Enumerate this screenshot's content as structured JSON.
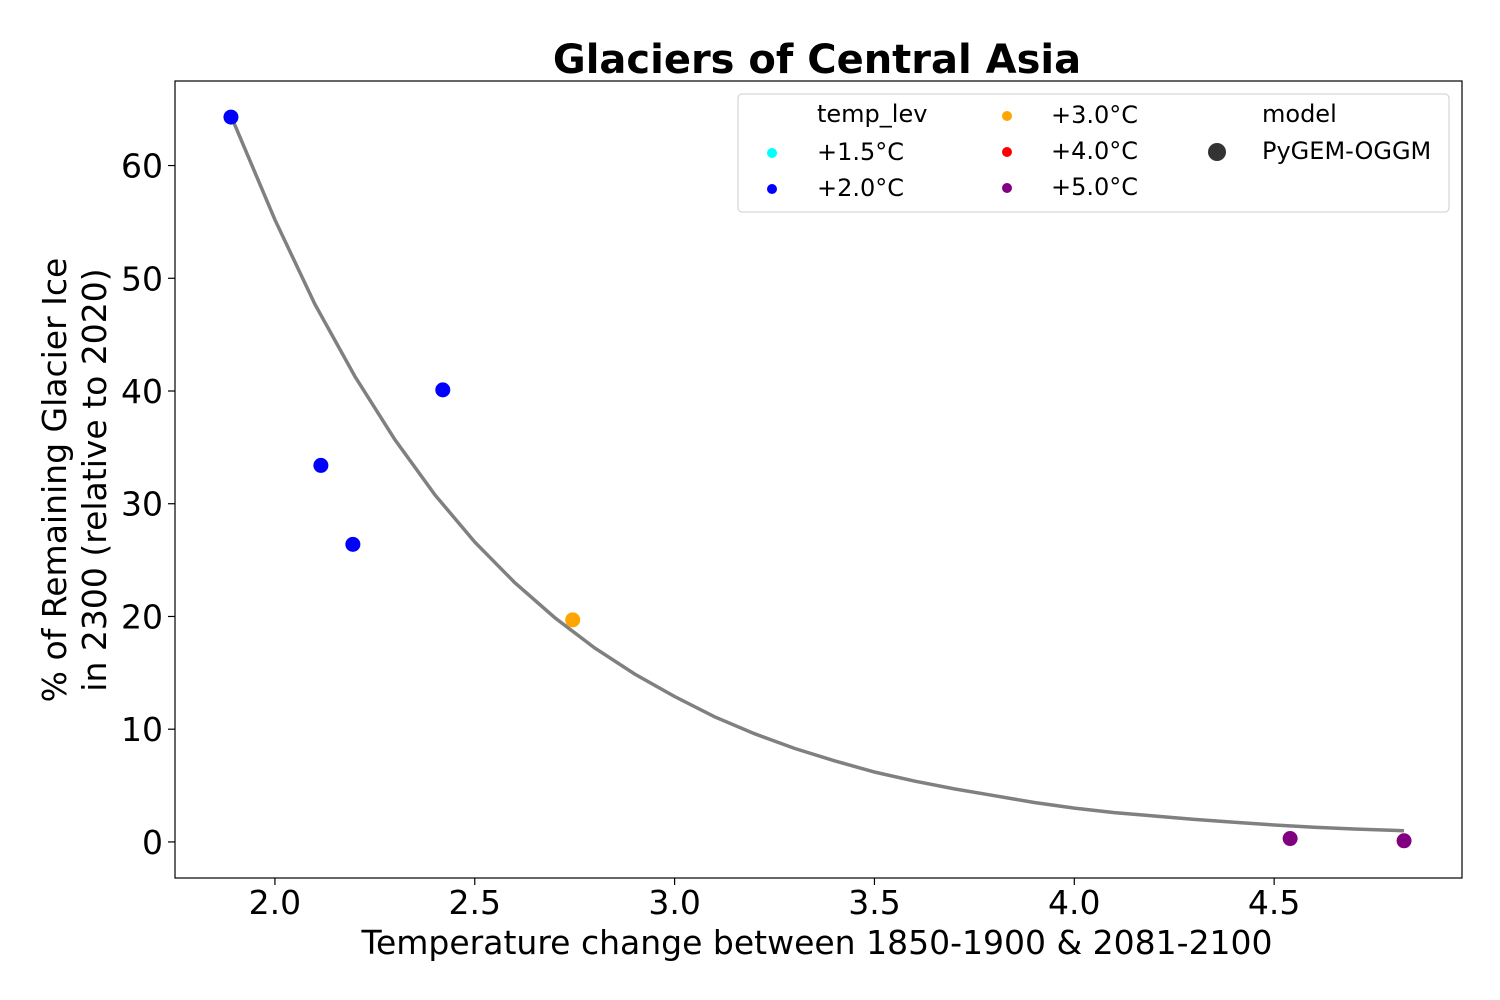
{
  "chart_data": {
    "type": "scatter",
    "title": "Glaciers of Central Asia",
    "xlabel": "Temperature change between 1850-1900 & 2081-2100",
    "ylabel_lines": [
      "% of Remaining Glacier Ice",
      "in 2300 (relative to 2020)"
    ],
    "xlim": [
      1.75,
      4.97
    ],
    "ylim": [
      -3.2,
      67.5
    ],
    "xticks": [
      2.0,
      2.5,
      3.0,
      3.5,
      4.0,
      4.5
    ],
    "xtick_labels": [
      "2.0",
      "2.5",
      "3.0",
      "3.5",
      "4.0",
      "4.5"
    ],
    "yticks": [
      0,
      10,
      20,
      30,
      40,
      50,
      60
    ],
    "ytick_labels": [
      "0",
      "10",
      "20",
      "30",
      "40",
      "50",
      "60"
    ],
    "grid": false,
    "legend": {
      "placement": "top-right",
      "hue_title": "temp_lev",
      "style_title": "model",
      "hue_entries": [
        {
          "label": "+1.5°C",
          "color": "#00ffff"
        },
        {
          "label": "+2.0°C",
          "color": "#0000ff"
        },
        {
          "label": "+3.0°C",
          "color": "#ffa500"
        },
        {
          "label": "+4.0°C",
          "color": "#ff0000"
        },
        {
          "label": "+5.0°C",
          "color": "#800080"
        }
      ],
      "style_entries": [
        {
          "label": "PyGEM-OGGM",
          "color": "#333333"
        }
      ]
    },
    "points": [
      {
        "x": 1.89,
        "y": 64.3,
        "temp_lev": "+2.0°C",
        "color": "#0000ff"
      },
      {
        "x": 2.115,
        "y": 33.4,
        "temp_lev": "+2.0°C",
        "color": "#0000ff"
      },
      {
        "x": 2.195,
        "y": 26.4,
        "temp_lev": "+2.0°C",
        "color": "#0000ff"
      },
      {
        "x": 2.42,
        "y": 40.1,
        "temp_lev": "+2.0°C",
        "color": "#0000ff"
      },
      {
        "x": 2.745,
        "y": 19.7,
        "temp_lev": "+3.0°C",
        "color": "#ffa500"
      },
      {
        "x": 4.54,
        "y": 0.3,
        "temp_lev": "+5.0°C",
        "color": "#800080"
      },
      {
        "x": 4.825,
        "y": 0.1,
        "temp_lev": "+5.0°C",
        "color": "#800080"
      }
    ],
    "fit_curve": {
      "color": "#808080",
      "x": [
        1.89,
        2.0,
        2.1,
        2.2,
        2.3,
        2.4,
        2.5,
        2.6,
        2.7,
        2.8,
        2.9,
        3.0,
        3.1,
        3.2,
        3.3,
        3.4,
        3.5,
        3.6,
        3.7,
        3.8,
        3.9,
        4.0,
        4.1,
        4.2,
        4.3,
        4.4,
        4.5,
        4.6,
        4.7,
        4.825
      ],
      "y": [
        64.4,
        55.2,
        47.7,
        41.3,
        35.7,
        30.8,
        26.6,
        23.0,
        19.9,
        17.2,
        14.9,
        12.9,
        11.1,
        9.6,
        8.3,
        7.2,
        6.2,
        5.4,
        4.7,
        4.1,
        3.5,
        3.0,
        2.6,
        2.3,
        2.0,
        1.75,
        1.5,
        1.3,
        1.15,
        1.0
      ]
    }
  }
}
